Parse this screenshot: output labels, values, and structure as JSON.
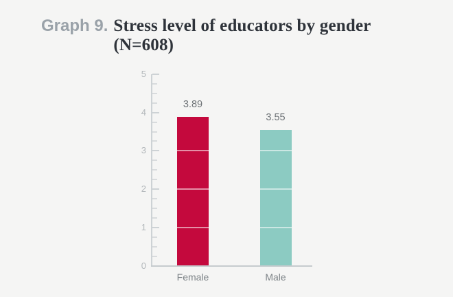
{
  "title": {
    "prefix": "Graph 9.",
    "main": "Stress level of educators by gender",
    "sub": "(N=608)"
  },
  "colors": {
    "background": "#f5f5f4",
    "female_bar": "#c4093d",
    "male_bar": "#8ccbc2",
    "axis": "#cdd2d5",
    "baseline": "#c6cbce",
    "tick_label": "#b2b7ba",
    "value_label": "#6d7276",
    "category_label": "#7d8387",
    "title_prefix": "#9aa2a9",
    "title_main": "#2e333a",
    "bar_gridline": "rgba(255,255,255,0.55)"
  },
  "chart_data": {
    "type": "bar",
    "title": "Graph 9. Stress level of educators by gender (N=608)",
    "categories": [
      "Female",
      "Male"
    ],
    "values": [
      3.89,
      3.55
    ],
    "value_labels": [
      "3.89",
      "3.55"
    ],
    "bar_colors": [
      "#c4093d",
      "#8ccbc2"
    ],
    "xlabel": "",
    "ylabel": "",
    "ylim": [
      0,
      5
    ],
    "y_major_ticks": [
      0,
      1,
      2,
      3,
      4,
      5
    ],
    "y_tick_labels": [
      "0",
      "1",
      "2",
      "3",
      "4",
      "5"
    ],
    "y_minor_tick_step": 0.25,
    "grid": "white horizontal lines over bars at integer values only",
    "legend": "none"
  }
}
